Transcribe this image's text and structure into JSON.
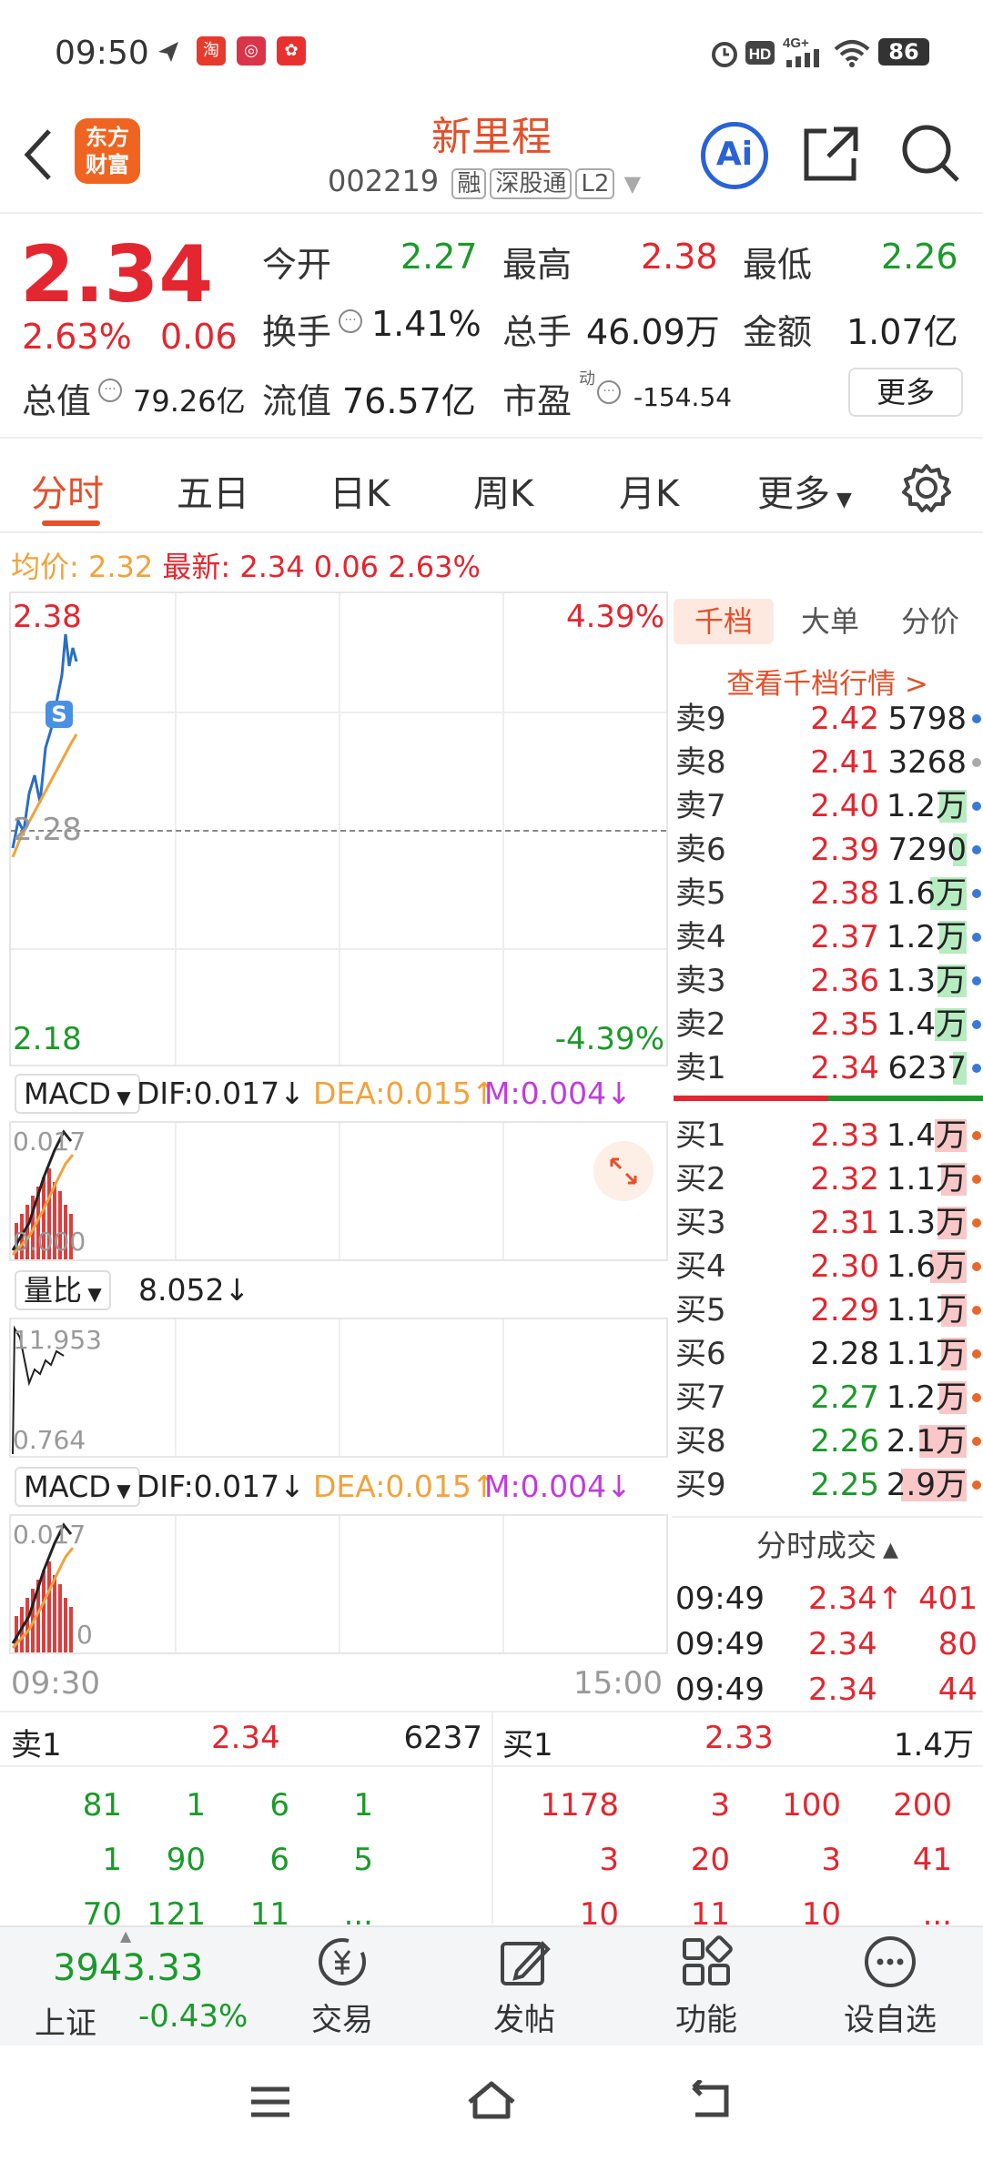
{
  "status_bar": {
    "time": "09:50",
    "battery": "86",
    "network": "4G+"
  },
  "header": {
    "title": "新里程",
    "code": "002219",
    "tags": [
      "融",
      "深股通",
      "L2"
    ],
    "logo_line1": "东方",
    "logo_line2": "财富",
    "ai_label": "Ai"
  },
  "quote": {
    "price": "2.34",
    "change_pct": "2.63%",
    "change": "0.06",
    "open_label": "今开",
    "open": "2.27",
    "high_label": "最高",
    "high": "2.38",
    "low_label": "最低",
    "low": "2.26",
    "turnover_label": "换手",
    "turnover": "1.41%",
    "volume_label": "总手",
    "volume": "46.09万",
    "amount_label": "金额",
    "amount": "1.07亿",
    "mktcap_label": "总值",
    "mktcap": "79.26亿",
    "float_label": "流值",
    "float": "76.57亿",
    "pe_label": "市盈",
    "pe_sup": "动",
    "pe": "-154.54",
    "more_label": "更多"
  },
  "tabs": [
    "分时",
    "五日",
    "日K",
    "周K",
    "月K",
    "更多"
  ],
  "avg_line": {
    "avg_label": "均价:",
    "avg": "2.32",
    "latest_label": "最新:",
    "latest": "2.34",
    "change": "0.06",
    "change_pct": "2.63%"
  },
  "main_chart": {
    "top_price": "2.38",
    "top_pct": "4.39%",
    "mid_price": "2.28",
    "bottom_price": "2.18",
    "bottom_pct": "-4.39%",
    "start_time": "09:30",
    "end_time": "15:00",
    "s_badge": "S"
  },
  "indicator1": {
    "name": "MACD",
    "dif": "DIF:0.017",
    "dif_arrow": "↓",
    "dea": "DEA:0.015",
    "dea_arrow": "↑",
    "m": "M:0.004",
    "m_arrow": "↓",
    "top": "0.017",
    "bottom": "0.000"
  },
  "indicator2": {
    "name": "量比",
    "value": "8.052",
    "arrow": "↓",
    "top": "11.953",
    "bottom": "0.764"
  },
  "indicator3": {
    "name": "MACD",
    "dif": "DIF:0.017",
    "dif_arrow": "↓",
    "dea": "DEA:0.015",
    "dea_arrow": "↑",
    "m": "M:0.004",
    "m_arrow": "↓",
    "top": "0.017",
    "bottom": "0"
  },
  "right_panel": {
    "tabs": [
      "千档",
      "大单",
      "分价"
    ],
    "link": "查看千档行情 >",
    "asks": [
      {
        "label": "卖9",
        "price": "2.42",
        "vol": "5798",
        "bar": 0.0
      },
      {
        "label": "卖8",
        "price": "2.41",
        "vol": "3268",
        "bar": 0.0
      },
      {
        "label": "卖7",
        "price": "2.40",
        "vol": "1.2万",
        "bar": 0.3
      },
      {
        "label": "卖6",
        "price": "2.39",
        "vol": "7290",
        "bar": 0.15
      },
      {
        "label": "卖5",
        "price": "2.38",
        "vol": "1.6万",
        "bar": 0.4
      },
      {
        "label": "卖4",
        "price": "2.37",
        "vol": "1.2万",
        "bar": 0.3
      },
      {
        "label": "卖3",
        "price": "2.36",
        "vol": "1.3万",
        "bar": 0.32
      },
      {
        "label": "卖2",
        "price": "2.35",
        "vol": "1.4万",
        "bar": 0.35
      },
      {
        "label": "卖1",
        "price": "2.34",
        "vol": "6237",
        "bar": 0.15
      }
    ],
    "bids": [
      {
        "label": "买1",
        "price": "2.33",
        "vol": "1.4万",
        "bar": 0.35
      },
      {
        "label": "买2",
        "price": "2.32",
        "vol": "1.1万",
        "bar": 0.28
      },
      {
        "label": "买3",
        "price": "2.31",
        "vol": "1.3万",
        "bar": 0.32
      },
      {
        "label": "买4",
        "price": "2.30",
        "vol": "1.6万",
        "bar": 0.4
      },
      {
        "label": "买5",
        "price": "2.29",
        "vol": "1.1万",
        "bar": 0.28
      },
      {
        "label": "买6",
        "price": "2.28",
        "vol": "1.1万",
        "bar": 0.28
      },
      {
        "label": "买7",
        "price": "2.27",
        "vol": "1.2万",
        "bar": 0.3
      },
      {
        "label": "买8",
        "price": "2.26",
        "vol": "2.1万",
        "bar": 0.52
      },
      {
        "label": "买9",
        "price": "2.25",
        "vol": "2.9万",
        "bar": 0.72
      }
    ],
    "ticks_title": "分时成交",
    "ticks": [
      {
        "time": "09:49",
        "price": "2.34",
        "arrow": "↑",
        "vol": "401"
      },
      {
        "time": "09:49",
        "price": "2.34",
        "arrow": "",
        "vol": "80"
      },
      {
        "time": "09:49",
        "price": "2.34",
        "arrow": "",
        "vol": "44"
      }
    ]
  },
  "depth": {
    "ask_label": "卖1",
    "ask_price": "2.34",
    "ask_vol": "6237",
    "bid_label": "买1",
    "bid_price": "2.33",
    "bid_vol": "1.4万",
    "ask_queue": [
      [
        "81",
        "1",
        "6",
        "1"
      ],
      [
        "1",
        "90",
        "6",
        "5"
      ],
      [
        "70",
        "121",
        "11",
        "..."
      ]
    ],
    "bid_queue": [
      [
        "1178",
        "3",
        "100",
        "200"
      ],
      [
        "3",
        "20",
        "3",
        "41"
      ],
      [
        "10",
        "11",
        "10",
        "..."
      ]
    ]
  },
  "footer": {
    "index_value": "3943.33",
    "index_name": "上证",
    "index_change": "-0.43%",
    "buttons": [
      "交易",
      "发帖",
      "功能",
      "设自选"
    ]
  }
}
